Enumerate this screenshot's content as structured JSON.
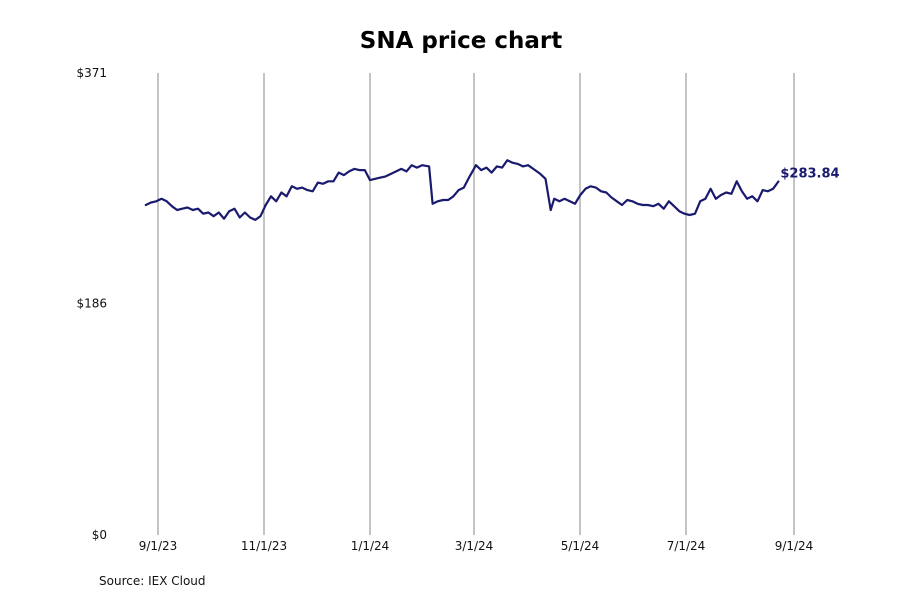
{
  "chart_data": {
    "type": "line",
    "title": "SNA price chart",
    "xlabel": "",
    "ylabel": "",
    "x_ticks": [
      "9/1/23",
      "11/1/23",
      "1/1/24",
      "3/1/24",
      "5/1/24",
      "7/1/24",
      "9/1/24"
    ],
    "x_range": [
      "2023-08-25",
      "2024-09-01"
    ],
    "y_ticks": [
      "$371",
      "$186",
      "$0"
    ],
    "y_tick_values": [
      371,
      186,
      0
    ],
    "ylim": [
      0,
      371
    ],
    "grid": "vertical",
    "end_label": "$283.84",
    "line_color": "#1a1a6e",
    "series": [
      {
        "values": [
          [
            "2023-08-25",
            265
          ],
          [
            "2023-08-28",
            267
          ],
          [
            "2023-08-31",
            268
          ],
          [
            "2023-09-03",
            270
          ],
          [
            "2023-09-06",
            268
          ],
          [
            "2023-09-09",
            264
          ],
          [
            "2023-09-12",
            261
          ],
          [
            "2023-09-15",
            262
          ],
          [
            "2023-09-18",
            263
          ],
          [
            "2023-09-21",
            261
          ],
          [
            "2023-09-24",
            262
          ],
          [
            "2023-09-27",
            258
          ],
          [
            "2023-09-30",
            259
          ],
          [
            "2023-10-03",
            256
          ],
          [
            "2023-10-06",
            259
          ],
          [
            "2023-10-09",
            254
          ],
          [
            "2023-10-12",
            260
          ],
          [
            "2023-10-15",
            262
          ],
          [
            "2023-10-18",
            255
          ],
          [
            "2023-10-21",
            259
          ],
          [
            "2023-10-24",
            255
          ],
          [
            "2023-10-27",
            253
          ],
          [
            "2023-10-30",
            256
          ],
          [
            "2023-11-02",
            265
          ],
          [
            "2023-11-05",
            272
          ],
          [
            "2023-11-08",
            268
          ],
          [
            "2023-11-11",
            275
          ],
          [
            "2023-11-14",
            272
          ],
          [
            "2023-11-17",
            280
          ],
          [
            "2023-11-20",
            278
          ],
          [
            "2023-11-23",
            279
          ],
          [
            "2023-11-26",
            277
          ],
          [
            "2023-11-29",
            276
          ],
          [
            "2023-12-02",
            283
          ],
          [
            "2023-12-05",
            282
          ],
          [
            "2023-12-08",
            284
          ],
          [
            "2023-12-11",
            284
          ],
          [
            "2023-12-14",
            291
          ],
          [
            "2023-12-17",
            289
          ],
          [
            "2023-12-20",
            292
          ],
          [
            "2023-12-23",
            294
          ],
          [
            "2023-12-26",
            293
          ],
          [
            "2023-12-29",
            293
          ],
          [
            "2024-01-01",
            285
          ],
          [
            "2024-01-04",
            286
          ],
          [
            "2024-01-07",
            287
          ],
          [
            "2024-01-10",
            288
          ],
          [
            "2024-01-13",
            290
          ],
          [
            "2024-01-16",
            292
          ],
          [
            "2024-01-19",
            294
          ],
          [
            "2024-01-22",
            292
          ],
          [
            "2024-01-25",
            297
          ],
          [
            "2024-01-28",
            295
          ],
          [
            "2024-01-31",
            297
          ],
          [
            "2024-02-04",
            296
          ],
          [
            "2024-02-06",
            266
          ],
          [
            "2024-02-09",
            268
          ],
          [
            "2024-02-12",
            269
          ],
          [
            "2024-02-15",
            269
          ],
          [
            "2024-02-18",
            272
          ],
          [
            "2024-02-21",
            277
          ],
          [
            "2024-02-24",
            279
          ],
          [
            "2024-02-27",
            287
          ],
          [
            "2024-03-02",
            297
          ],
          [
            "2024-03-05",
            293
          ],
          [
            "2024-03-08",
            295
          ],
          [
            "2024-03-11",
            291
          ],
          [
            "2024-03-14",
            296
          ],
          [
            "2024-03-17",
            295
          ],
          [
            "2024-03-20",
            301
          ],
          [
            "2024-03-23",
            299
          ],
          [
            "2024-03-26",
            298
          ],
          [
            "2024-03-29",
            296
          ],
          [
            "2024-04-01",
            297
          ],
          [
            "2024-04-04",
            294
          ],
          [
            "2024-04-08",
            290
          ],
          [
            "2024-04-11",
            286
          ],
          [
            "2024-04-14",
            261
          ],
          [
            "2024-04-16",
            270
          ],
          [
            "2024-04-19",
            268
          ],
          [
            "2024-04-22",
            270
          ],
          [
            "2024-04-25",
            268
          ],
          [
            "2024-04-28",
            266
          ],
          [
            "2024-05-01",
            273
          ],
          [
            "2024-05-04",
            278
          ],
          [
            "2024-05-07",
            280
          ],
          [
            "2024-05-10",
            279
          ],
          [
            "2024-05-13",
            276
          ],
          [
            "2024-05-16",
            275
          ],
          [
            "2024-05-19",
            271
          ],
          [
            "2024-05-22",
            268
          ],
          [
            "2024-05-25",
            265
          ],
          [
            "2024-05-28",
            269
          ],
          [
            "2024-05-31",
            268
          ],
          [
            "2024-06-03",
            266
          ],
          [
            "2024-06-06",
            265
          ],
          [
            "2024-06-09",
            265
          ],
          [
            "2024-06-12",
            264
          ],
          [
            "2024-06-15",
            266
          ],
          [
            "2024-06-18",
            262
          ],
          [
            "2024-06-21",
            268
          ],
          [
            "2024-06-24",
            264
          ],
          [
            "2024-06-27",
            260
          ],
          [
            "2024-06-30",
            258
          ],
          [
            "2024-07-03",
            257
          ],
          [
            "2024-07-06",
            258
          ],
          [
            "2024-07-09",
            268
          ],
          [
            "2024-07-12",
            270
          ],
          [
            "2024-07-15",
            278
          ],
          [
            "2024-07-18",
            270
          ],
          [
            "2024-07-21",
            273
          ],
          [
            "2024-07-24",
            275
          ],
          [
            "2024-07-27",
            274
          ],
          [
            "2024-07-30",
            284
          ],
          [
            "2024-08-02",
            276
          ],
          [
            "2024-08-05",
            270
          ],
          [
            "2024-08-08",
            272
          ],
          [
            "2024-08-11",
            268
          ],
          [
            "2024-08-14",
            277
          ],
          [
            "2024-08-17",
            276
          ],
          [
            "2024-08-20",
            278
          ],
          [
            "2024-08-23",
            283.84
          ]
        ]
      }
    ]
  },
  "footer": {
    "source": "Source: IEX Cloud"
  }
}
